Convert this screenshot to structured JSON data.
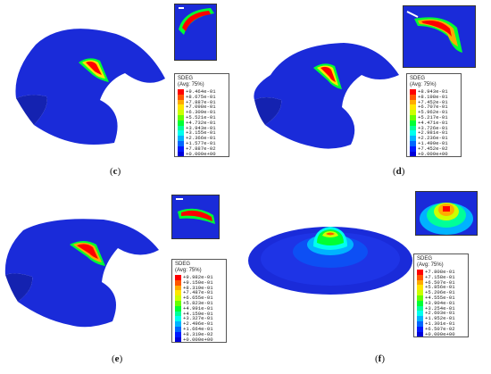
{
  "legend_title_1": "SDEG",
  "legend_title_2": "(Avg: 75%)",
  "panels": [
    {
      "id": "c",
      "caption": "c",
      "labels": [
        "+9.464e-01",
        "+8.675e-01",
        "+7.887e-01",
        "+7.098e-01",
        "+6.309e-01",
        "+5.521e-01",
        "+4.732e-01",
        "+3.943e-01",
        "+3.155e-01",
        "+2.366e-01",
        "+1.577e-01",
        "+7.887e-02",
        "+0.000e+00"
      ]
    },
    {
      "id": "d",
      "caption": "d",
      "labels": [
        "+8.943e-01",
        "+8.198e-01",
        "+7.452e-01",
        "+6.707e-01",
        "+5.962e-01",
        "+5.217e-01",
        "+4.471e-01",
        "+3.726e-01",
        "+2.981e-01",
        "+2.236e-01",
        "+1.490e-01",
        "+7.452e-02",
        "+0.000e+00"
      ]
    },
    {
      "id": "e",
      "caption": "e",
      "labels": [
        "+9.982e-01",
        "+9.150e-01",
        "+8.319e-01",
        "+7.487e-01",
        "+6.655e-01",
        "+5.823e-01",
        "+4.991e-01",
        "+4.159e-01",
        "+3.327e-01",
        "+2.496e-01",
        "+1.664e-01",
        "+8.319e-02",
        "+0.000e+00"
      ]
    },
    {
      "id": "f",
      "caption": "f",
      "labels": [
        "+7.808e-01",
        "+7.158e-01",
        "+6.507e-01",
        "+5.856e-01",
        "+5.206e-01",
        "+4.555e-01",
        "+3.904e-01",
        "+3.254e-01",
        "+2.603e-01",
        "+1.952e-01",
        "+1.301e-01",
        "+6.507e-02",
        "+0.000e+00"
      ]
    }
  ],
  "colormap": [
    "#ff0000",
    "#ff5500",
    "#ffaa00",
    "#ffe600",
    "#ccff00",
    "#66ff00",
    "#00ff33",
    "#00ff99",
    "#00ffee",
    "#00b3ff",
    "#0066ff",
    "#0019ff",
    "#0000d9"
  ],
  "colors": {
    "part": "#1a2bd9",
    "part_shade": "#1422b0"
  }
}
